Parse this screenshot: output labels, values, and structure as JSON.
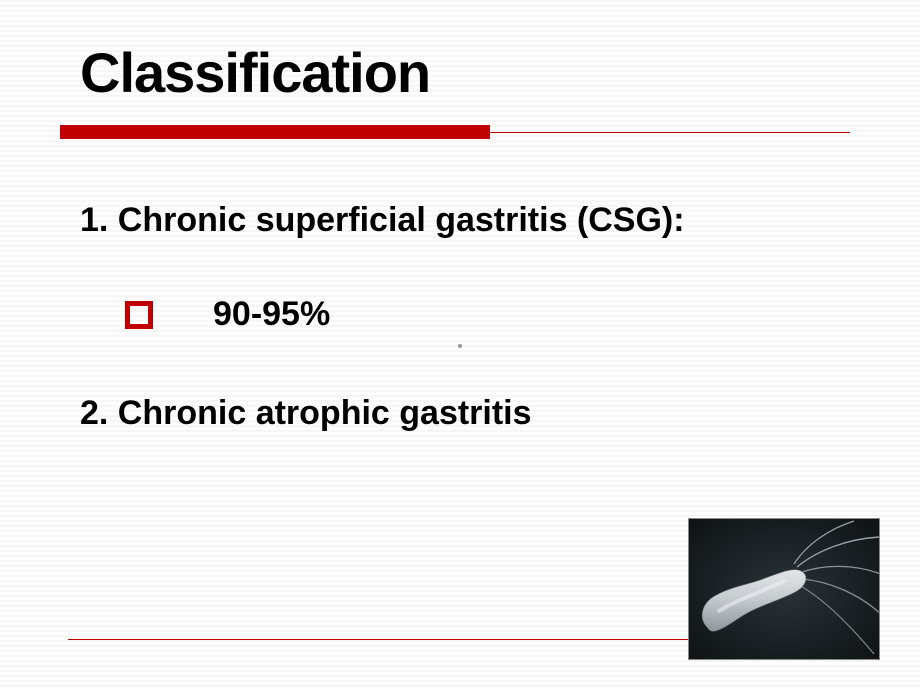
{
  "slide": {
    "title": "Classification",
    "title_fontsize": 56,
    "title_color": "#000000",
    "rule_thick_color": "#c00000",
    "rule_thick_width": 430,
    "rule_thin_color": "#c00000",
    "item1": "1. Chronic superficial gastritis (CSG):",
    "bullet_value": "90-95%",
    "bullet_border_color": "#c00000",
    "item2": "2. Chronic atrophic gastritis",
    "body_fontsize": 34,
    "bottom_rule_color": "#c00000",
    "background_stripe_light": "#ffffff",
    "background_stripe_dark": "#f6f6f6",
    "hp_image": {
      "bg": "#1a2123",
      "body_color": "#c9cdd0",
      "flagella_color": "#9ba1a5"
    }
  }
}
